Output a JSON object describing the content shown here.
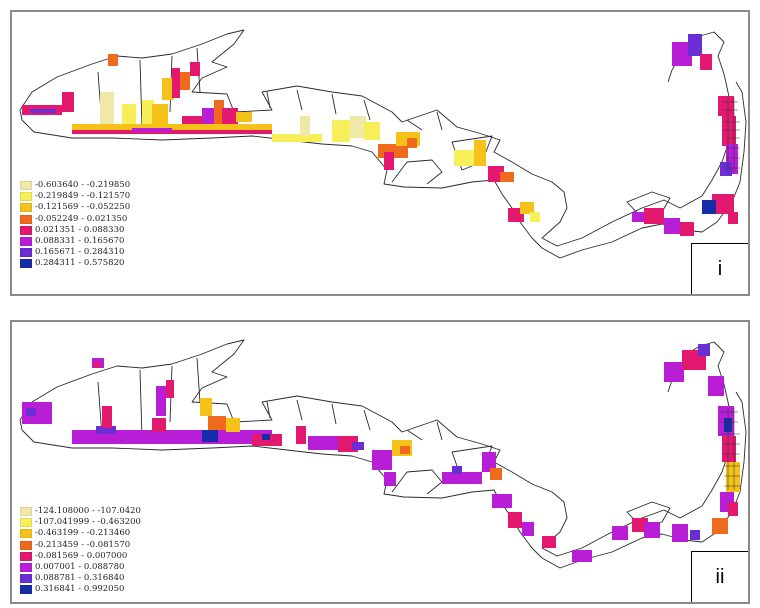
{
  "panels": [
    {
      "label": "i",
      "legend": [
        {
          "range": "-0.603640 - -0.219850",
          "color": "#efe8a8"
        },
        {
          "range": "-0.219849 - -0.121570",
          "color": "#f7ef5a"
        },
        {
          "range": "-0.121569 - -0.052250",
          "color": "#f5c21a"
        },
        {
          "range": "-0.052249 - 0.021350",
          "color": "#ef6a1c"
        },
        {
          "range": "0.021351 - 0.088330",
          "color": "#e2196e"
        },
        {
          "range": "0.088331 - 0.165670",
          "color": "#b81ed6"
        },
        {
          "range": "0.165671 - 0.284310",
          "color": "#6a2ed2"
        },
        {
          "range": "0.284311 - 0.575820",
          "color": "#162ca8"
        }
      ]
    },
    {
      "label": "ii",
      "legend": [
        {
          "range": "-124.108000 - -107.0420",
          "color": "#efe8a8"
        },
        {
          "range": "-107.041999 - -0.463200",
          "color": "#f7ef5a"
        },
        {
          "range": "-0.463199 - -0.213460",
          "color": "#f5c21a"
        },
        {
          "range": "-0.213459 - -0.081570",
          "color": "#ef6a1c"
        },
        {
          "range": "-0.081569 - 0.007000",
          "color": "#e2196e"
        },
        {
          "range": "0.007001 - 0.088780",
          "color": "#b81ed6"
        },
        {
          "range": "0.088781 - 0.316840",
          "color": "#6a2ed2"
        },
        {
          "range": "0.316841 - 0.992050",
          "color": "#162ca8"
        }
      ]
    }
  ]
}
